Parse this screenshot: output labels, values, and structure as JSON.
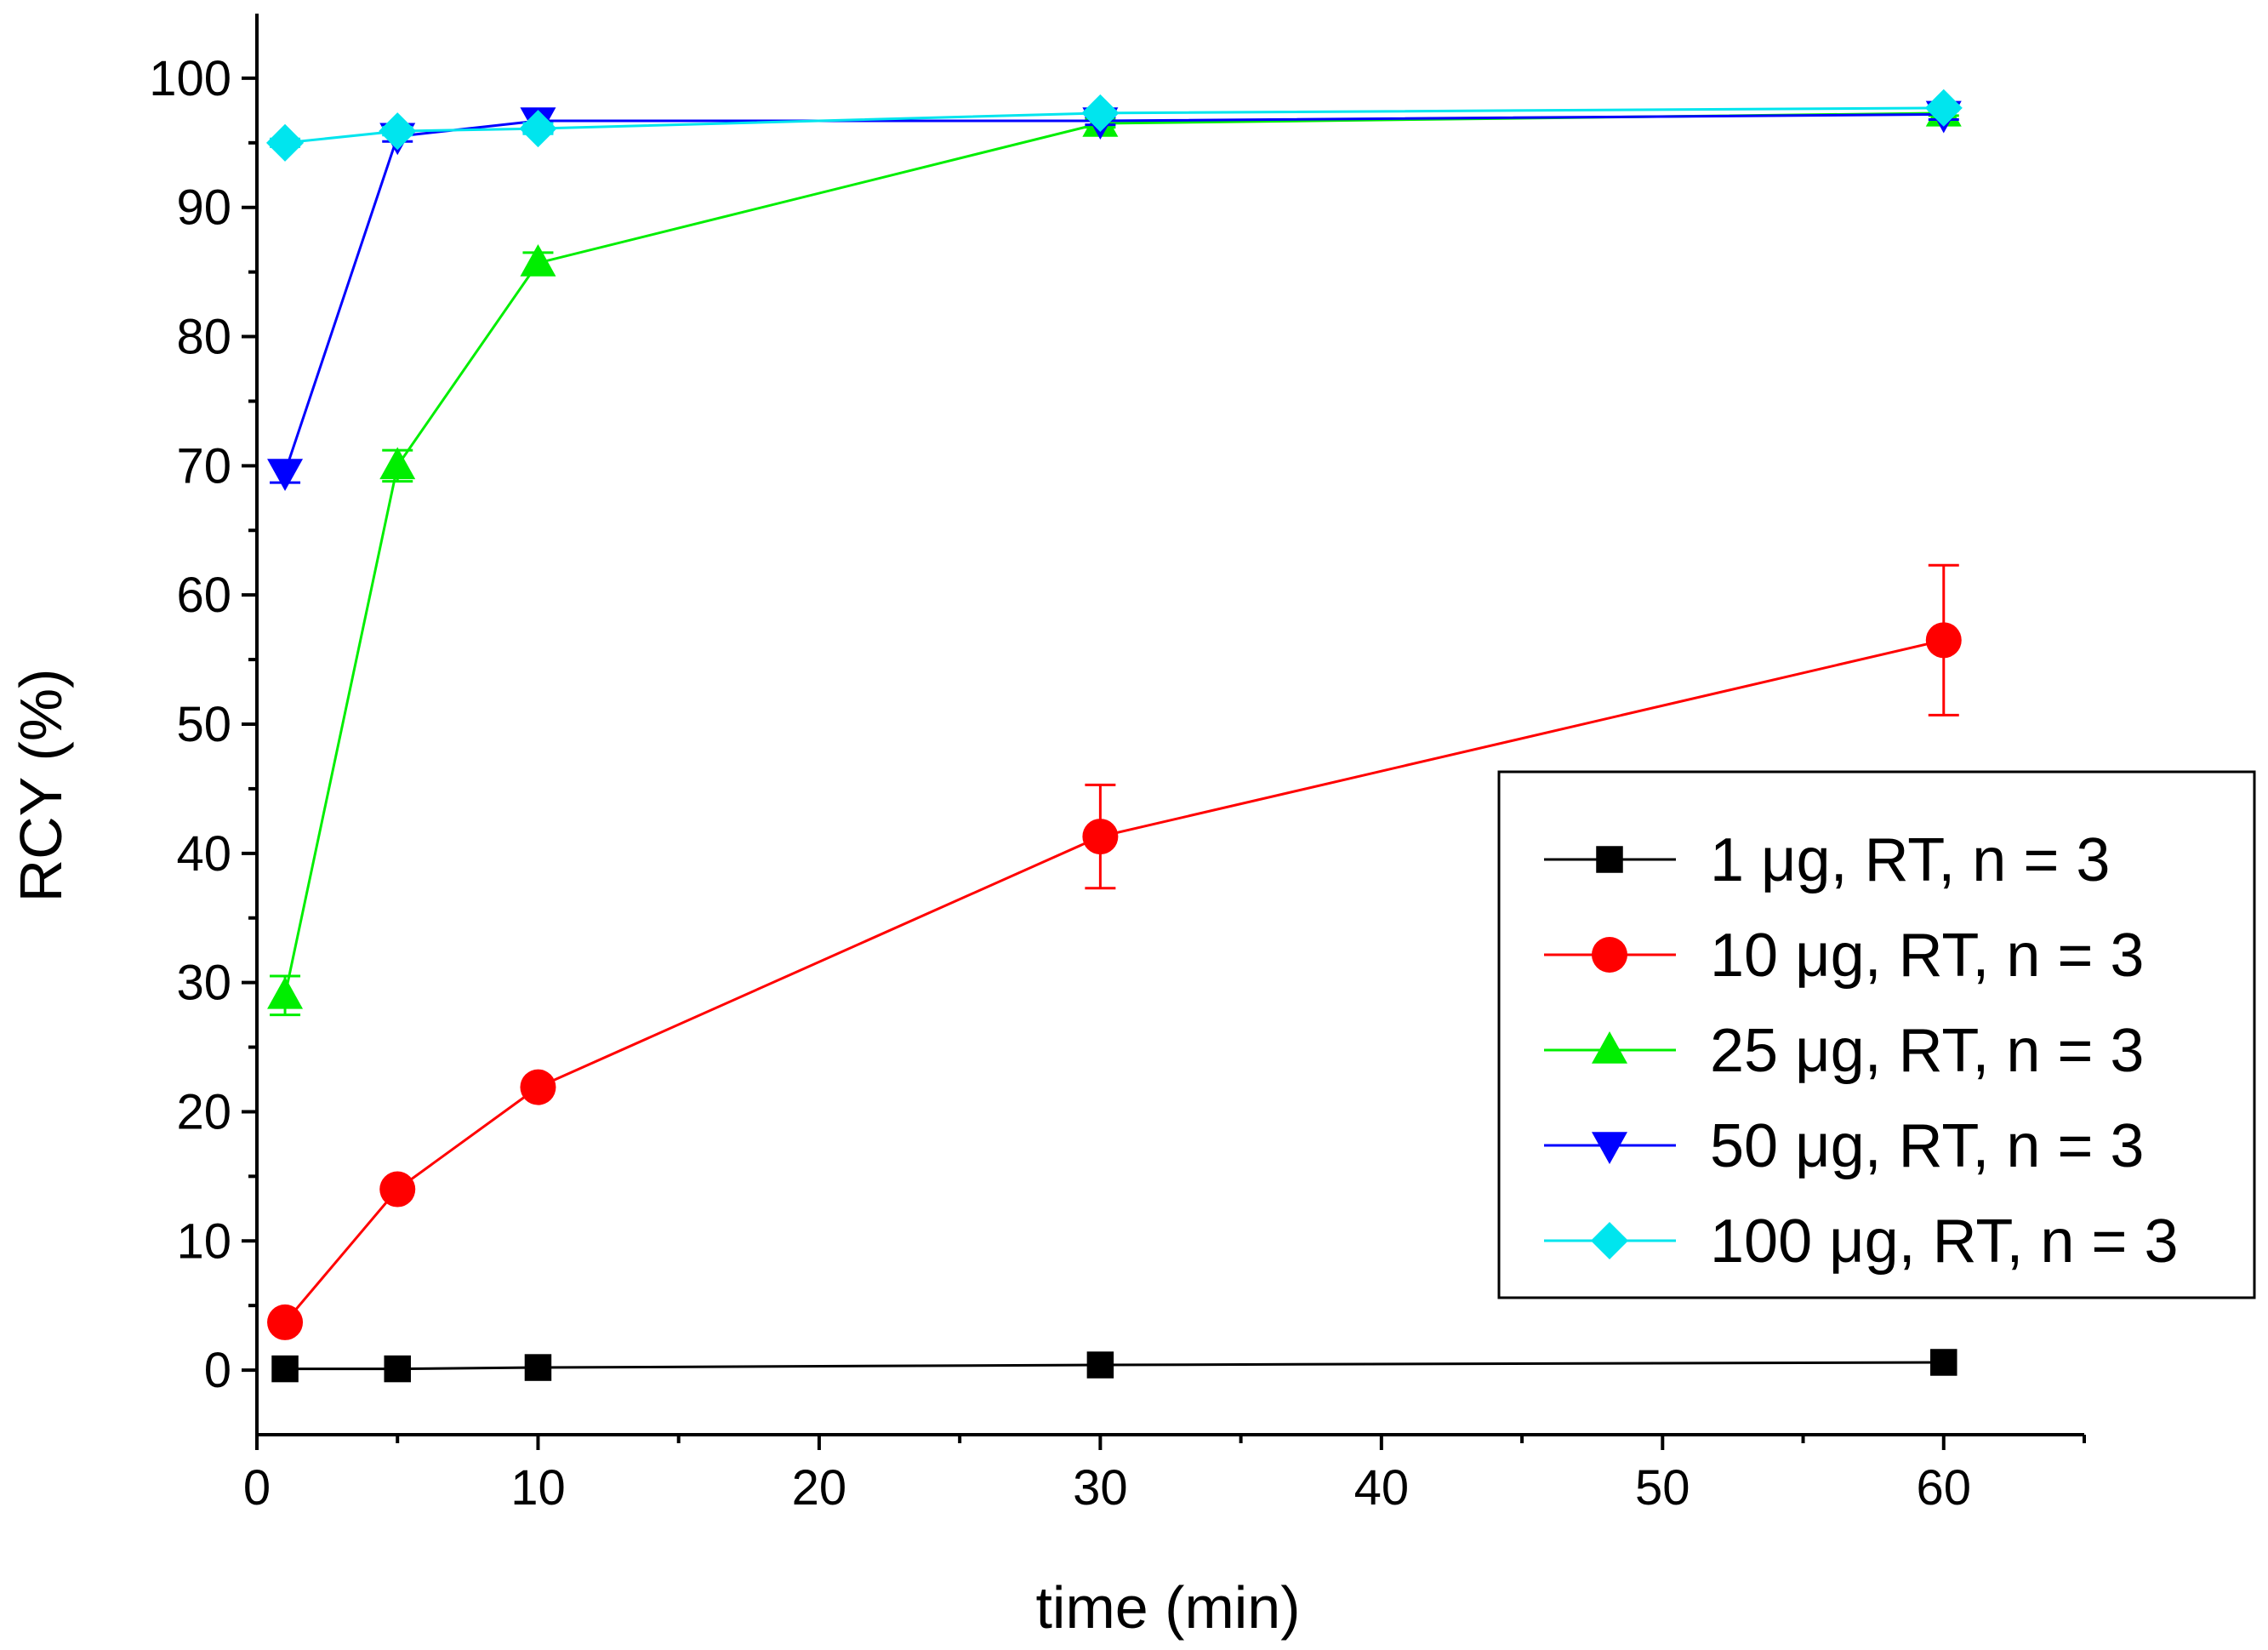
{
  "chart_data": {
    "type": "line",
    "title": "",
    "xlabel": "time (min)",
    "ylabel": "RCY (%)",
    "xlim": [
      0,
      65
    ],
    "ylim": [
      -5,
      105
    ],
    "xticks": [
      0,
      10,
      20,
      30,
      40,
      50,
      60
    ],
    "yticks": [
      0,
      10,
      20,
      30,
      40,
      50,
      60,
      70,
      80,
      90,
      100
    ],
    "legend_position": "center-right",
    "grid": false,
    "series": [
      {
        "name": "1 μg, RT, n = 3",
        "color": "#000000",
        "marker": "square",
        "x": [
          1,
          5,
          10,
          30,
          60
        ],
        "y": [
          0.1,
          0.1,
          0.2,
          0.4,
          0.6
        ],
        "err": [
          0,
          0,
          0,
          0,
          0
        ]
      },
      {
        "name": "10 μg, RT, n = 3",
        "color": "#ff0000",
        "marker": "circle",
        "x": [
          1,
          5,
          10,
          30,
          60
        ],
        "y": [
          3.7,
          14.0,
          21.9,
          41.3,
          56.5
        ],
        "err": [
          0,
          0,
          0.6,
          4.0,
          5.8
        ]
      },
      {
        "name": "25 μg, RT, n = 3",
        "color": "#00ee00",
        "marker": "triangle-up",
        "x": [
          1,
          5,
          10,
          30,
          60
        ],
        "y": [
          29.0,
          70.0,
          85.7,
          96.5,
          97.3
        ],
        "err": [
          1.5,
          1.2,
          0.8,
          0.3,
          0.2
        ]
      },
      {
        "name": "50 μg, RT, n = 3",
        "color": "#0000ff",
        "marker": "triangle-down",
        "x": [
          1,
          5,
          10,
          30,
          60
        ],
        "y": [
          69.5,
          95.5,
          96.7,
          96.7,
          97.2
        ],
        "err": [
          0.8,
          0.4,
          0.9,
          0.3,
          0.4
        ]
      },
      {
        "name": "100 μg, RT, n = 3",
        "color": "#00e5ee",
        "marker": "diamond",
        "x": [
          1,
          5,
          10,
          30,
          60
        ],
        "y": [
          95.0,
          95.9,
          96.1,
          97.3,
          97.7
        ],
        "err": [
          0.3,
          0.3,
          0.4,
          0.2,
          0.2
        ]
      }
    ]
  }
}
